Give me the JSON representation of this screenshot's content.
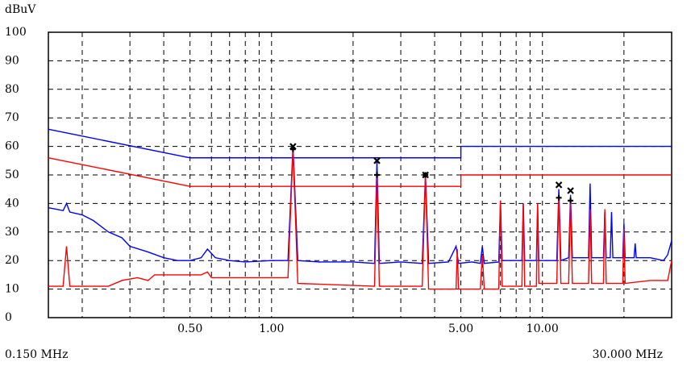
{
  "chart_data": {
    "type": "line",
    "y_label": "dBuV",
    "x_start_label": "0.150 MHz",
    "x_end_label": "30.000 MHz",
    "xlog": true,
    "xlim": [
      0.15,
      30
    ],
    "ylim": [
      0,
      100
    ],
    "yticks": [
      0,
      10,
      20,
      30,
      40,
      50,
      60,
      70,
      80,
      90,
      100
    ],
    "xticks": [
      {
        "value": 0.5,
        "label": "0.50"
      },
      {
        "value": 1,
        "label": "1.00"
      },
      {
        "value": 5,
        "label": "5.00"
      },
      {
        "value": 10,
        "label": "10.00"
      }
    ],
    "xminor": [
      0.2,
      0.3,
      0.4,
      0.6,
      0.7,
      0.8,
      0.9,
      2,
      3,
      4,
      6,
      7,
      8,
      9,
      20
    ],
    "grid": true,
    "series": [
      {
        "color": "#0000ff",
        "x": [
          0.15,
          0.5,
          5,
          5,
          30
        ],
        "values": [
          66,
          56,
          56,
          60,
          60
        ]
      },
      {
        "color": "#ff0000",
        "x": [
          0.15,
          0.5,
          5,
          5,
          30
        ],
        "values": [
          56,
          46,
          46,
          50,
          50
        ]
      },
      {
        "color": "#0000ff",
        "x": [
          0.15,
          0.16,
          0.17,
          0.175,
          0.18,
          0.2,
          0.22,
          0.25,
          0.28,
          0.3,
          0.35,
          0.4,
          0.45,
          0.5,
          0.55,
          0.58,
          0.62,
          0.7,
          0.8,
          1.0,
          1.15,
          1.2,
          1.25,
          1.5,
          2.0,
          2.4,
          2.45,
          2.5,
          3.0,
          3.6,
          3.7,
          3.8,
          4.5,
          4.8,
          4.9,
          5.5,
          5.9,
          6.0,
          6.1,
          6.9,
          7.0,
          7.1,
          8.4,
          8.5,
          8.6,
          9.5,
          9.6,
          9.7,
          11.3,
          11.5,
          11.7,
          12.5,
          12.7,
          12.9,
          14.8,
          15.0,
          15.2,
          16.8,
          17.0,
          17.2,
          17.8,
          18,
          18.2,
          19.8,
          20,
          20.2,
          21.8,
          22,
          22.2,
          25,
          28,
          29,
          30
        ],
        "values": [
          38.5,
          38,
          37.5,
          40,
          37,
          36,
          34,
          30,
          28,
          25,
          23,
          21,
          20,
          20,
          21,
          24,
          21,
          20,
          19.5,
          20,
          20,
          60,
          20,
          19.5,
          19.5,
          19,
          55,
          19,
          19.5,
          19,
          50,
          19,
          19.5,
          25,
          19,
          19.5,
          19,
          25,
          19,
          19.5,
          41,
          20,
          20,
          40,
          20,
          20,
          40,
          20,
          20,
          45,
          20,
          21,
          43,
          21,
          21,
          47,
          21,
          21,
          37,
          21,
          21,
          37,
          21,
          21,
          33,
          21,
          21,
          26,
          21,
          21,
          20,
          22,
          27
        ]
      },
      {
        "color": "#ff0000",
        "x": [
          0.15,
          0.17,
          0.175,
          0.18,
          0.25,
          0.28,
          0.32,
          0.35,
          0.37,
          0.5,
          0.55,
          0.58,
          0.6,
          0.7,
          1.0,
          1.15,
          1.2,
          1.25,
          2.4,
          2.45,
          2.5,
          3.6,
          3.7,
          3.8,
          4.8,
          4.85,
          4.9,
          5.9,
          6.0,
          6.1,
          6.9,
          7.0,
          7.1,
          8.4,
          8.5,
          8.6,
          9.5,
          9.6,
          9.7,
          11.3,
          11.5,
          11.7,
          12.5,
          12.7,
          12.9,
          14.8,
          15,
          15.2,
          16.8,
          17,
          17.2,
          19.8,
          20,
          20.2,
          25,
          29,
          30
        ],
        "values": [
          11,
          11,
          25,
          11,
          11,
          13,
          14,
          13,
          15,
          15,
          15,
          16,
          14,
          14,
          14,
          14,
          59,
          12,
          11,
          50,
          11,
          11,
          50,
          10,
          10,
          24,
          10,
          10,
          22,
          10,
          10,
          41,
          11,
          11,
          40,
          11,
          11,
          40,
          12,
          12,
          43,
          12,
          12,
          41,
          12,
          12,
          38,
          12,
          12,
          38,
          12,
          12,
          31,
          12,
          13,
          13,
          20
        ]
      }
    ],
    "markers": [
      {
        "symbol": "x",
        "x": [
          1.2,
          2.45,
          3.7,
          11.5,
          12.7
        ],
        "values": [
          60,
          55,
          50,
          46.5,
          44.5
        ]
      },
      {
        "symbol": "+",
        "x": [
          1.2,
          2.45,
          3.7,
          11.5,
          12.7
        ],
        "values": [
          59,
          50,
          50,
          42,
          41
        ]
      }
    ]
  }
}
